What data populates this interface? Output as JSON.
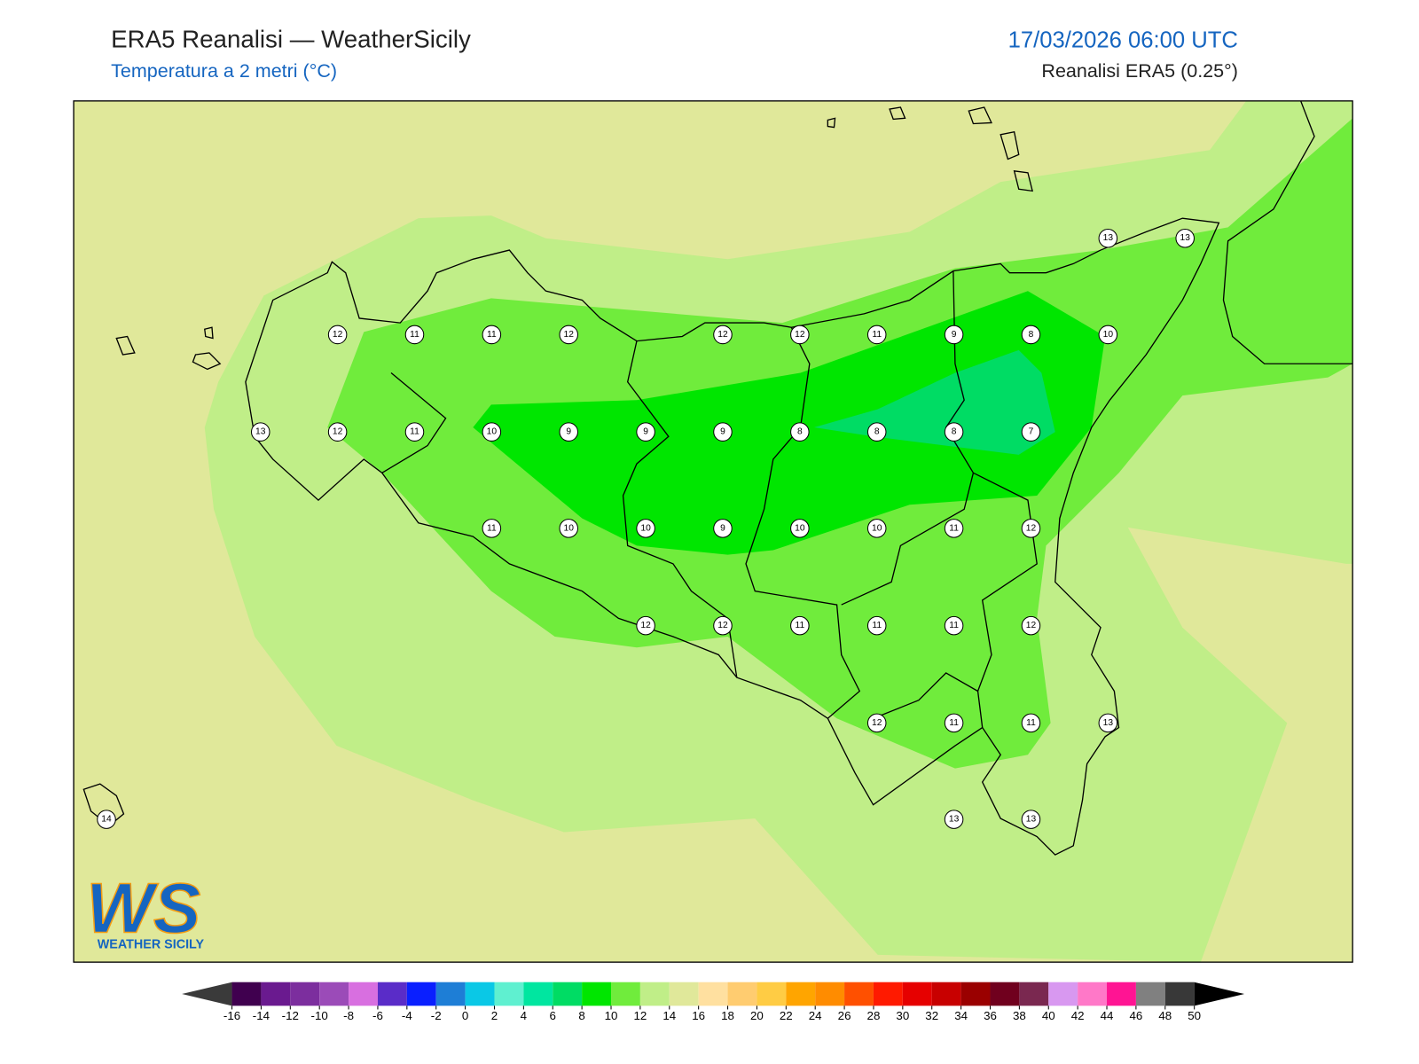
{
  "header": {
    "title": "ERA5 Reanalisi — WeatherSicily",
    "subtitle": "Temperatura a 2 metri (°C)",
    "datetime": "17/03/2026 06:00 UTC",
    "source": "Reanalisi ERA5 (0.25°)"
  },
  "map": {
    "grid_values": [
      [
        null,
        null,
        null,
        null,
        null,
        null,
        null,
        null,
        null,
        null,
        null,
        null,
        null,
        13,
        13
      ],
      [
        null,
        null,
        null,
        12,
        11,
        11,
        12,
        null,
        12,
        12,
        11,
        9,
        8,
        10,
        null
      ],
      [
        null,
        null,
        13,
        12,
        11,
        10,
        9,
        9,
        9,
        8,
        8,
        8,
        7,
        null,
        null
      ],
      [
        null,
        null,
        null,
        null,
        null,
        11,
        10,
        10,
        9,
        10,
        10,
        11,
        12,
        null,
        null
      ],
      [
        null,
        null,
        null,
        null,
        null,
        null,
        null,
        12,
        12,
        11,
        11,
        11,
        12,
        null,
        null
      ],
      [
        null,
        null,
        null,
        null,
        null,
        null,
        null,
        null,
        null,
        null,
        12,
        11,
        11,
        13,
        null
      ],
      [
        14,
        null,
        null,
        null,
        null,
        null,
        null,
        null,
        null,
        null,
        null,
        13,
        13,
        null,
        null
      ]
    ]
  },
  "colorbar": {
    "ticks": [
      -16,
      -14,
      -12,
      -10,
      -8,
      -6,
      -4,
      -2,
      0,
      2,
      4,
      6,
      8,
      10,
      12,
      14,
      16,
      18,
      20,
      22,
      24,
      26,
      28,
      30,
      32,
      34,
      36,
      38,
      40,
      42,
      44,
      46,
      48,
      50
    ],
    "colors": [
      "#40004f",
      "#6a1a8f",
      "#7c2e9e",
      "#9b4bb8",
      "#d86fe0",
      "#5a2cc8",
      "#0a1fff",
      "#1e7ed6",
      "#0ac8e6",
      "#5ff0d0",
      "#00e6a0",
      "#00dc64",
      "#00e600",
      "#70ec3c",
      "#c0ee88",
      "#e0e89a",
      "#ffe0a0",
      "#ffcc70",
      "#ffcc44",
      "#ffa500",
      "#ff8c00",
      "#ff5000",
      "#ff1a00",
      "#e60000",
      "#c80000",
      "#9a0000",
      "#70001e",
      "#7a2850",
      "#d898f0",
      "#ff78c8",
      "#ff1493",
      "#808080",
      "#383838"
    ],
    "under_color": "#3a3a3a",
    "over_color": "#000000"
  },
  "logo": {
    "mark": "WS",
    "name": "WEATHER SICILY"
  }
}
